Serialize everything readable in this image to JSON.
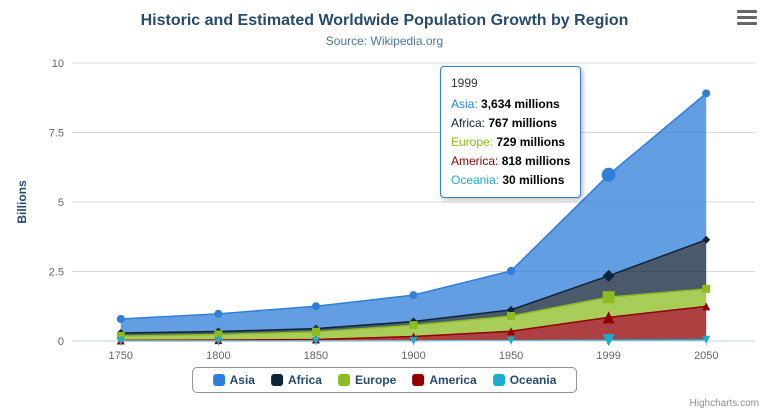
{
  "title": "Historic and Estimated Worldwide Population Growth by Region",
  "subtitle": "Source: Wikipedia.org",
  "credit": "Highcharts.com",
  "hover_index": 5,
  "chart_data": {
    "type": "area",
    "stacking": "normal",
    "title": "Historic and Estimated Worldwide Population Growth by Region",
    "subtitle": "Source: Wikipedia.org",
    "categories": [
      "1750",
      "1800",
      "1850",
      "1900",
      "1950",
      "1999",
      "2050"
    ],
    "xlabel": "",
    "ylabel": "Billions",
    "unit": "millions",
    "ylim": [
      0,
      10
    ],
    "yticks": [
      0,
      2.5,
      5,
      7.5,
      10
    ],
    "grid": true,
    "legend_position": "bottom",
    "series": [
      {
        "name": "Asia",
        "color": "#2f7ed8",
        "marker": "circle",
        "values": [
          502,
          635,
          809,
          947,
          1402,
          3634,
          5268
        ]
      },
      {
        "name": "Africa",
        "color": "#0d233a",
        "marker": "diamond",
        "values": [
          106,
          107,
          111,
          133,
          221,
          767,
          1766
        ]
      },
      {
        "name": "Europe",
        "color": "#8bbc21",
        "marker": "square",
        "values": [
          163,
          203,
          276,
          408,
          547,
          729,
          628
        ]
      },
      {
        "name": "America",
        "color": "#910000",
        "marker": "triangle",
        "values": [
          18,
          31,
          54,
          156,
          339,
          818,
          1201
        ]
      },
      {
        "name": "Oceania",
        "color": "#1aadce",
        "marker": "triangle-down",
        "values": [
          2,
          2,
          2,
          6,
          13,
          30,
          46
        ]
      }
    ]
  },
  "tooltip": {
    "header": "1999",
    "rows": [
      {
        "name": "Asia",
        "value": "3,634 millions",
        "color": "#2f7ed8"
      },
      {
        "name": "Africa",
        "value": "767 millions",
        "color": "#0d233a"
      },
      {
        "name": "Europe",
        "value": "729 millions",
        "color": "#8bbc21"
      },
      {
        "name": "America",
        "value": "818 millions",
        "color": "#910000"
      },
      {
        "name": "Oceania",
        "value": "30 millions",
        "color": "#1aadce"
      }
    ]
  }
}
